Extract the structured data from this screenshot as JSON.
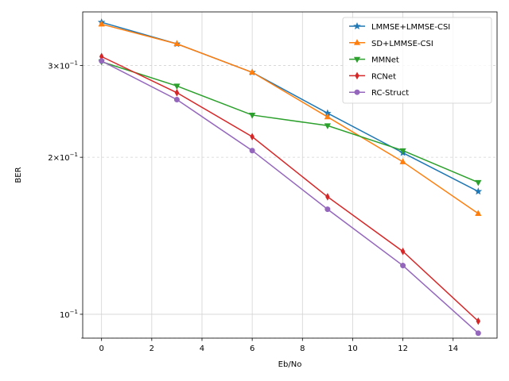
{
  "chart_data": {
    "type": "line",
    "title": "",
    "xlabel": "Eb/No",
    "ylabel": "BER",
    "yscale": "log",
    "xlim": [
      -0.75,
      15.75
    ],
    "ylim": [
      0.09,
      0.38
    ],
    "xticks": [
      0,
      2,
      4,
      6,
      8,
      10,
      12,
      14
    ],
    "xtick_labels": [
      "0",
      "2",
      "4",
      "6",
      "8",
      "10",
      "12",
      "14"
    ],
    "yticks_major": [
      0.1,
      0.2,
      0.3
    ],
    "ytick_labels": [
      "10^{-1}",
      "2×10^{-1}",
      "3×10^{-1}"
    ],
    "grid": true,
    "legend_position": "upper right",
    "x": [
      0,
      3,
      6,
      9,
      12,
      15
    ],
    "series": [
      {
        "name": "LMMSE+LMMSE-CSI",
        "color": "#1f77b4",
        "marker": "star",
        "values": [
          0.363,
          0.33,
          0.291,
          0.243,
          0.204,
          0.172
        ]
      },
      {
        "name": "SD+LMMSE-CSI",
        "color": "#ff7f0e",
        "marker": "triangle-up",
        "values": [
          0.36,
          0.33,
          0.291,
          0.239,
          0.196,
          0.156
        ]
      },
      {
        "name": "MMNet",
        "color": "#2ca02c",
        "marker": "triangle-down",
        "values": [
          0.305,
          0.274,
          0.241,
          0.23,
          0.206,
          0.179
        ]
      },
      {
        "name": "RCNet",
        "color": "#d62728",
        "marker": "thin-diamond",
        "values": [
          0.312,
          0.266,
          0.219,
          0.168,
          0.132,
          0.097
        ]
      },
      {
        "name": "RC-Struct",
        "color": "#9467bd",
        "marker": "circle",
        "values": [
          0.306,
          0.258,
          0.206,
          0.159,
          0.124,
          0.092
        ]
      }
    ]
  }
}
